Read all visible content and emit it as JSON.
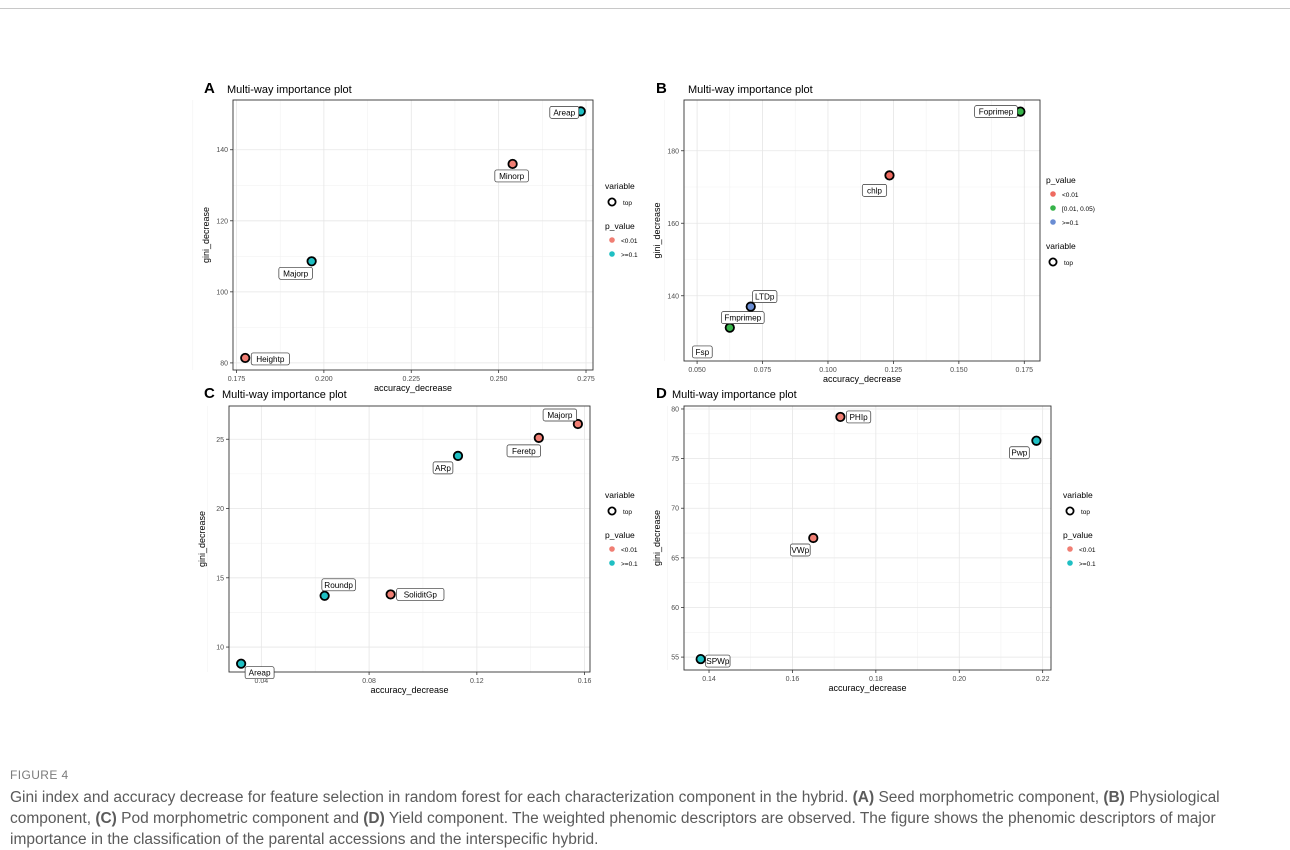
{
  "caption": {
    "label": "FIGURE 4",
    "parts": [
      {
        "t": "Gini index and accuracy decrease for feature selection in random forest for each characterization component in the hybrid. ",
        "b": false
      },
      {
        "t": "(A)",
        "b": true
      },
      {
        "t": " Seed morphometric component, ",
        "b": false
      },
      {
        "t": "(B)",
        "b": true
      },
      {
        "t": " Physiological component, ",
        "b": false
      },
      {
        "t": "(C)",
        "b": true
      },
      {
        "t": " Pod morphometric component and ",
        "b": false
      },
      {
        "t": "(D)",
        "b": true
      },
      {
        "t": " Yield component. The weighted phenomic descriptors are observed. The figure shows the phenomic descriptors of major importance in the classification of the parental accessions and the interspecific hybrid.",
        "b": false
      }
    ]
  },
  "colors": {
    "lt001": "#F07E73",
    "ge01": "#1FBFC3",
    "b_lt001": "#EE6A60",
    "b_mid": "#37B34A",
    "b_ge01": "#6A8DD3"
  },
  "chart_data": [
    {
      "panel": "A",
      "type": "scatter",
      "title": "Multi-way importance plot",
      "xlabel": "accuracy_decrease",
      "ylabel": "gini_decrease",
      "xlim": [
        0.174,
        0.277
      ],
      "ylim": [
        78,
        154
      ],
      "xticks": [
        0.175,
        0.2,
        0.225,
        0.25,
        0.275
      ],
      "xtick_labels": [
        "0.175",
        "0.200",
        "0.225",
        "0.250",
        "0.275"
      ],
      "yticks": [
        80,
        100,
        120,
        140
      ],
      "ytick_labels": [
        "80",
        "100",
        "120",
        "140"
      ],
      "grid": true,
      "points": [
        {
          "label": "Areap",
          "x": 0.2735,
          "y": 150.8,
          "group": "ge01"
        },
        {
          "label": "Minorp",
          "x": 0.254,
          "y": 136.0,
          "group": "lt001"
        },
        {
          "label": "Majorp",
          "x": 0.1965,
          "y": 108.6,
          "group": "ge01"
        },
        {
          "label": "Heightp",
          "x": 0.1775,
          "y": 81.4,
          "group": "lt001"
        }
      ],
      "legend": {
        "variable_title": "variable",
        "variable_items": [
          "top"
        ],
        "p_title": "p_value",
        "p_items": [
          {
            "label": "<0.01",
            "color_key": "lt001"
          },
          {
            "label": ">=0.1",
            "color_key": "ge01"
          }
        ]
      }
    },
    {
      "panel": "B",
      "type": "scatter",
      "title": "Multi-way importance plot",
      "xlabel": "accuracy_decrease",
      "ylabel": "gini_decrease",
      "xlim": [
        0.045,
        0.181
      ],
      "ylim": [
        122,
        194
      ],
      "xticks": [
        0.05,
        0.075,
        0.1,
        0.125,
        0.15,
        0.175
      ],
      "xtick_labels": [
        "0.050",
        "0.075",
        "0.100",
        "0.125",
        "0.150",
        "0.175"
      ],
      "yticks": [
        140,
        160,
        180
      ],
      "ytick_labels": [
        "140",
        "160",
        "180"
      ],
      "grid": true,
      "points": [
        {
          "label": "Foprimep",
          "x": 0.1735,
          "y": 190.8,
          "group": "b_mid",
          "fill": true
        },
        {
          "label": "chlp",
          "x": 0.1235,
          "y": 173.2,
          "group": "b_lt001",
          "fill": true
        },
        {
          "label": "LTDp",
          "x": 0.0705,
          "y": 137.0,
          "group": "b_ge01",
          "fill": true
        },
        {
          "label": "Fmprimep",
          "x": 0.0625,
          "y": 131.2,
          "group": "b_mid",
          "fill": true
        },
        {
          "label": "Fsp",
          "x": 0.052,
          "y": 124.5,
          "group": "none",
          "fill": false
        }
      ],
      "legend": {
        "p_title": "p_value",
        "p_items": [
          {
            "label": "<0.01",
            "color_key": "b_lt001"
          },
          {
            "label": "[0.01, 0.05)",
            "color_key": "b_mid"
          },
          {
            "label": ">=0.1",
            "color_key": "b_ge01"
          }
        ],
        "variable_title": "variable",
        "variable_items": [
          "top"
        ]
      }
    },
    {
      "panel": "C",
      "type": "scatter",
      "title": "Multi-way importance plot",
      "xlabel": "accuracy_decrease",
      "ylabel": "gini_decrease",
      "xlim": [
        0.028,
        0.162
      ],
      "ylim": [
        8.2,
        27.4
      ],
      "xticks": [
        0.04,
        0.08,
        0.12,
        0.16
      ],
      "xtick_labels": [
        "0.04",
        "0.08",
        "0.12",
        "0.16"
      ],
      "yticks": [
        10,
        15,
        20,
        25
      ],
      "ytick_labels": [
        "10",
        "15",
        "20",
        "25"
      ],
      "grid": true,
      "points": [
        {
          "label": "Majorp",
          "x": 0.1575,
          "y": 26.1,
          "group": "lt001"
        },
        {
          "label": "Feretp",
          "x": 0.143,
          "y": 25.1,
          "group": "lt001"
        },
        {
          "label": "ARp",
          "x": 0.113,
          "y": 23.8,
          "group": "ge01"
        },
        {
          "label": "Roundp",
          "x": 0.0635,
          "y": 13.7,
          "group": "ge01"
        },
        {
          "label": "SoliditGp",
          "x": 0.088,
          "y": 13.8,
          "group": "lt001"
        },
        {
          "label": "Areap",
          "x": 0.0325,
          "y": 8.8,
          "group": "ge01"
        }
      ],
      "legend": {
        "variable_title": "variable",
        "variable_items": [
          "top"
        ],
        "p_title": "p_value",
        "p_items": [
          {
            "label": "<0.01",
            "color_key": "lt001"
          },
          {
            "label": ">=0.1",
            "color_key": "ge01"
          }
        ]
      }
    },
    {
      "panel": "D",
      "type": "scatter",
      "title": "Multi-way importance plot",
      "xlabel": "accuracy_decrease",
      "ylabel": "gini_decrease",
      "xlim": [
        0.134,
        0.222
      ],
      "ylim": [
        53.7,
        80.3
      ],
      "xticks": [
        0.14,
        0.16,
        0.18,
        0.2,
        0.22
      ],
      "xtick_labels": [
        "0.14",
        "0.16",
        "0.18",
        "0.20",
        "0.22"
      ],
      "yticks": [
        55,
        60,
        65,
        70,
        75,
        80
      ],
      "ytick_labels": [
        "55",
        "60",
        "65",
        "70",
        "75",
        "80"
      ],
      "grid": true,
      "points": [
        {
          "label": "PHIp",
          "x": 0.1715,
          "y": 79.2,
          "group": "lt001"
        },
        {
          "label": "Pwp",
          "x": 0.2185,
          "y": 76.8,
          "group": "ge01"
        },
        {
          "label": "VWp",
          "x": 0.165,
          "y": 67.0,
          "group": "lt001"
        },
        {
          "label": "SPWp",
          "x": 0.138,
          "y": 54.8,
          "group": "ge01"
        }
      ],
      "legend": {
        "variable_title": "variable",
        "variable_items": [
          "top"
        ],
        "p_title": "p_value",
        "p_items": [
          {
            "label": "<0.01",
            "color_key": "lt001"
          },
          {
            "label": ">=0.1",
            "color_key": "ge01"
          }
        ]
      }
    }
  ]
}
